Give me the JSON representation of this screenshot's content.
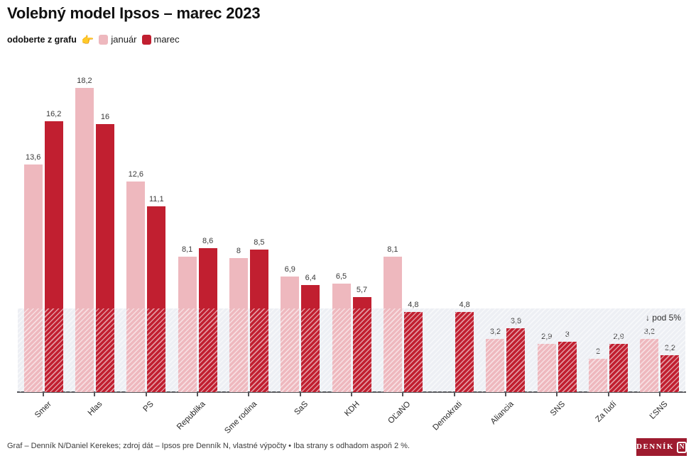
{
  "title": "Volebný model Ipsos – marec 2023",
  "legend": {
    "prefix": "odoberte z grafu",
    "hand_icon": "👉",
    "series": [
      {
        "label": "január",
        "color": "#eeb8be"
      },
      {
        "label": "marec",
        "color": "#c11f30"
      }
    ]
  },
  "chart_data": {
    "type": "bar",
    "categories": [
      "Smer",
      "Hlas",
      "PS",
      "Republika",
      "Sme rodina",
      "SaS",
      "KDH",
      "OĽaNO",
      "Demokrati",
      "Aliancia",
      "SNS",
      "Za ľudí",
      "ĽSNS"
    ],
    "series": [
      {
        "name": "januar",
        "label": "január",
        "color": "#eeb8be",
        "values": [
          13.6,
          18.2,
          12.6,
          8.1,
          8,
          6.9,
          6.5,
          8.1,
          null,
          3.2,
          2.9,
          2,
          3.2
        ],
        "labels": [
          "13,6",
          "18,2",
          "12,6",
          "8,1",
          "8",
          "6,9",
          "6,5",
          "8,1",
          "",
          "3,2",
          "2,9",
          "2",
          "3,2"
        ]
      },
      {
        "name": "marec",
        "label": "marec",
        "color": "#c11f30",
        "values": [
          16.2,
          16,
          11.1,
          8.6,
          8.5,
          6.4,
          5.7,
          4.8,
          4.8,
          3.8,
          3,
          2.9,
          2.2
        ],
        "labels": [
          "16,2",
          "16",
          "11,1",
          "8,6",
          "8,5",
          "6,4",
          "5,7",
          "4,8",
          "4,8",
          "3,8",
          "3",
          "2,9",
          "2,2"
        ]
      }
    ],
    "threshold": {
      "value": 5,
      "label": "↓ pod 5%"
    },
    "ylim": [
      0,
      18.2
    ],
    "grid": false,
    "legend_position": "top-left",
    "xlabel": "",
    "ylabel": ""
  },
  "footer": {
    "credit": "Graf – Denník N/Daniel Kerekes; zdroj dát – Ipsos pre Denník N, vlastné výpočty • Iba strany s odhadom aspoň 2 %."
  },
  "logo": {
    "text": "DENNÍK",
    "n": "N"
  }
}
